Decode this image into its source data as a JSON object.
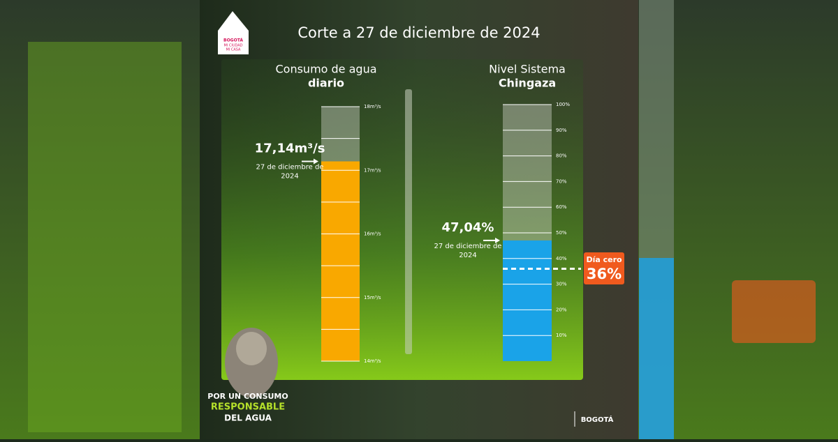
{
  "header": {
    "title": "Corte a 27 de diciembre de 2024",
    "logo": [
      "BOGOTÁ",
      "MI CIUDAD",
      "MI CASA"
    ]
  },
  "chart_data": [
    {
      "type": "bar",
      "title": {
        "text": "Consumo de agua",
        "emphasis": "diario"
      },
      "values": [
        17.14
      ],
      "value_labels": [
        "17,14m³/s"
      ],
      "annotation": "27 de diciembre de 2024",
      "color": "#f9a800",
      "ylim": [
        14,
        18
      ],
      "yticks": [
        {
          "value": 14,
          "label": "14m³/s"
        },
        {
          "value": 15,
          "label": "15m³/s"
        },
        {
          "value": 16,
          "label": "16m³/s"
        },
        {
          "value": 17,
          "label": "17m³/s"
        },
        {
          "value": 18,
          "label": "18m³/s"
        }
      ],
      "yticks_minor": [
        14.5,
        15.5,
        16.5,
        17.5
      ]
    },
    {
      "type": "bar",
      "title": {
        "text": "Nivel Sistema",
        "emphasis": "Chingaza"
      },
      "values": [
        47.04
      ],
      "value_labels": [
        "47,04%"
      ],
      "annotation": "27 de diciembre de 2024",
      "color": "#1aa3e8",
      "ylim": [
        0,
        100
      ],
      "yticks": [
        {
          "value": 10,
          "label": "10%"
        },
        {
          "value": 20,
          "label": "20%"
        },
        {
          "value": 30,
          "label": "30%"
        },
        {
          "value": 40,
          "label": "40%"
        },
        {
          "value": 50,
          "label": "50%"
        },
        {
          "value": 60,
          "label": "60%"
        },
        {
          "value": 70,
          "label": "70%"
        },
        {
          "value": 80,
          "label": "80%"
        },
        {
          "value": 90,
          "label": "90%"
        },
        {
          "value": 100,
          "label": "100%"
        }
      ],
      "threshold": {
        "value": 36,
        "label": "36%",
        "text": "Día cero"
      }
    }
  ],
  "footer": {
    "slogan": [
      "POR UN CONSUMO",
      "RESPONSABLE",
      "DEL AGUA"
    ],
    "brand": "BOGOTÁ"
  }
}
